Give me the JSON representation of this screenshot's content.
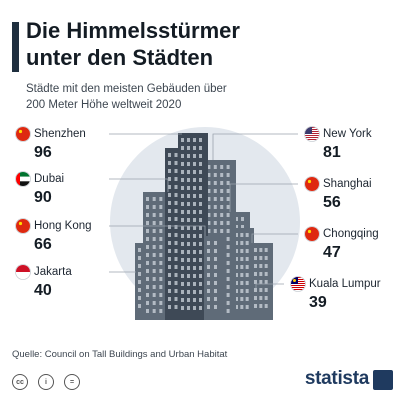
{
  "title_line1": "Die Himmelsstürmer",
  "title_line2": "unter den Städten",
  "subtitle_line1": "Städte mit den meisten Gebäuden über",
  "subtitle_line2": "200 Meter Höhe weltweit 2020",
  "source": "Quelle: Council on Tall Buildings and Urban Habitat",
  "brand": "statista",
  "license_icons": [
    "cc-icon",
    "by-icon",
    "nd-icon"
  ],
  "colors": {
    "buildings": "#5f6b78",
    "building_dark": "#3e4956",
    "halo": "#e3e8ee",
    "flag_china": "#de2910",
    "text": "#141c24"
  },
  "chart_data": {
    "type": "bar",
    "title": "Die Himmelsstürmer unter den Städten",
    "categories": [
      "Shenzhen",
      "New York",
      "Dubai",
      "Shanghai",
      "Hong Kong",
      "Chongqing",
      "Jakarta",
      "Kuala Lumpur"
    ],
    "values": [
      96,
      81,
      90,
      56,
      66,
      47,
      40,
      39
    ],
    "flags": [
      "china-flag-icon",
      "usa-flag-icon",
      "uae-flag-icon",
      "china-flag-icon",
      "china-flag-icon",
      "china-flag-icon",
      "indonesia-flag-icon",
      "malaysia-flag-icon"
    ]
  }
}
